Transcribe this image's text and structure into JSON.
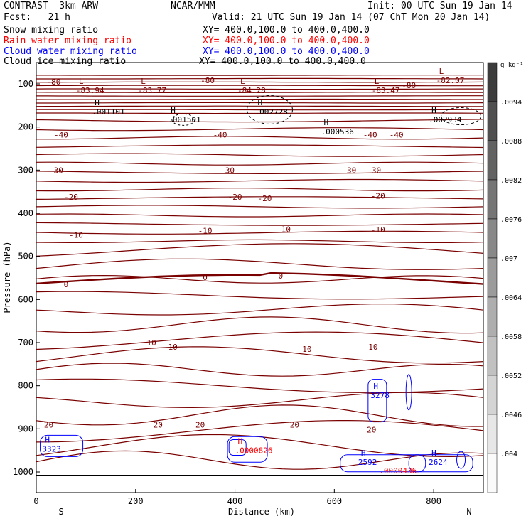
{
  "header": {
    "title_left": "CONTRAST  3km ARW",
    "title_center": "NCAR/MMM",
    "init": "Init: 00 UTC Sun 19 Jan 14",
    "fcst": "Fcst:   21 h",
    "valid": "Valid: 21 UTC Sun 19 Jan 14 (07 ChT Mon 20 Jan 14)",
    "fields": [
      {
        "label": "Snow mixing ratio",
        "xy": "XY= 400.0,100.0 to 400.0,400.0",
        "color": "#000000"
      },
      {
        "label": "Rain water mixing ratio",
        "xy": "XY= 400.0,100.0 to 400.0,400.0",
        "color": "#ff0000"
      },
      {
        "label": "Cloud water mixing ratio",
        "xy": "XY= 400.0,100.0 to 400.0,400.0",
        "color": "#0000ff"
      },
      {
        "label": "Cloud ice mixing ratio",
        "xy": "XY= 400.0,100.0 to 400.0,400.0",
        "color": "#000000"
      }
    ]
  },
  "chart_data": {
    "type": "contour",
    "xlabel": "Distance (km)",
    "ylabel": "Pressure (hPa)",
    "xlim": [
      0,
      900
    ],
    "ylim": [
      1050,
      50
    ],
    "x_ticks": [
      0,
      200,
      400,
      600,
      800
    ],
    "y_ticks": [
      100,
      200,
      300,
      400,
      500,
      600,
      700,
      800,
      900,
      1000
    ],
    "x_end_labels": {
      "left": "S",
      "right": "N"
    },
    "colorbar": {
      "unit": "g kg⁻¹",
      "labels": [
        ".0094",
        ".0088",
        ".0082",
        ".0076",
        ".007",
        ".0064",
        ".0058",
        ".0052",
        ".0046",
        ".004"
      ]
    },
    "temperature_contour_labels": [
      {
        "text": "-80",
        "x": 35,
        "p": 95
      },
      {
        "text": "-80",
        "x": 345,
        "p": 92
      },
      {
        "text": "-80",
        "x": 750,
        "p": 103
      },
      {
        "text": "-40",
        "x": 50,
        "p": 218
      },
      {
        "text": "-40",
        "x": 370,
        "p": 218
      },
      {
        "text": "-40",
        "x": 672,
        "p": 218
      },
      {
        "text": "-40",
        "x": 725,
        "p": 218
      },
      {
        "text": "-30",
        "x": 40,
        "p": 300
      },
      {
        "text": "-30",
        "x": 385,
        "p": 300
      },
      {
        "text": "-30",
        "x": 630,
        "p": 300
      },
      {
        "text": "-30",
        "x": 680,
        "p": 300
      },
      {
        "text": "-20",
        "x": 70,
        "p": 362
      },
      {
        "text": "-20",
        "x": 400,
        "p": 362
      },
      {
        "text": "-20",
        "x": 460,
        "p": 365
      },
      {
        "text": "-20",
        "x": 688,
        "p": 360
      },
      {
        "text": "-10",
        "x": 80,
        "p": 450
      },
      {
        "text": "-10",
        "x": 340,
        "p": 440
      },
      {
        "text": "-10",
        "x": 498,
        "p": 437
      },
      {
        "text": "-10",
        "x": 688,
        "p": 438
      },
      {
        "text": "0",
        "x": 60,
        "p": 565
      },
      {
        "text": "0",
        "x": 340,
        "p": 548
      },
      {
        "text": "0",
        "x": 492,
        "p": 545
      },
      {
        "text": "10",
        "x": 232,
        "p": 700
      },
      {
        "text": "10",
        "x": 275,
        "p": 710
      },
      {
        "text": "10",
        "x": 545,
        "p": 715
      },
      {
        "text": "10",
        "x": 678,
        "p": 710
      },
      {
        "text": "20",
        "x": 25,
        "p": 890
      },
      {
        "text": "20",
        "x": 245,
        "p": 890
      },
      {
        "text": "20",
        "x": 330,
        "p": 890
      },
      {
        "text": "20",
        "x": 520,
        "p": 890
      },
      {
        "text": "20",
        "x": 675,
        "p": 902
      }
    ],
    "extrema": [
      {
        "mark": "L",
        "value": "-83.94",
        "x": 80,
        "p": 113,
        "color": "#800000"
      },
      {
        "mark": "L",
        "value": "-83.77",
        "x": 205,
        "p": 113,
        "color": "#800000"
      },
      {
        "mark": "L",
        "value": "-84.28",
        "x": 405,
        "p": 113,
        "color": "#800000"
      },
      {
        "mark": "L",
        "value": "-83.47",
        "x": 675,
        "p": 113,
        "color": "#800000"
      },
      {
        "mark": "L",
        "value": "-82.07",
        "x": 805,
        "p": 90,
        "color": "#800000"
      },
      {
        "mark": "H",
        "value": ".001101",
        "x": 112,
        "p": 163,
        "color": "#000000"
      },
      {
        "mark": "H",
        "value": ".001501",
        "x": 265,
        "p": 181,
        "color": "#000000"
      },
      {
        "mark": "H",
        "value": ".002728",
        "x": 440,
        "p": 163,
        "color": "#000000"
      },
      {
        "mark": "H",
        "value": ".000536",
        "x": 573,
        "p": 209,
        "color": "#000000"
      },
      {
        "mark": "H",
        "value": ".002934",
        "x": 790,
        "p": 181,
        "color": "#000000"
      },
      {
        "mark": "H",
        "value": "3278",
        "x": 673,
        "p": 820,
        "color": "#0000ff"
      },
      {
        "mark": "H",
        "value": "3323",
        "x": 12,
        "p": 945,
        "color": "#0000ff"
      },
      {
        "mark": "H",
        "value": ".0000826",
        "x": 400,
        "p": 948,
        "color": "#ff0000"
      },
      {
        "mark": "H",
        "value": "2592",
        "x": 648,
        "p": 975,
        "color": "#0000ff"
      },
      {
        "mark": "H",
        "value": "2624",
        "x": 790,
        "p": 975,
        "color": "#0000ff"
      },
      {
        "mark": "",
        "value": ".0000436",
        "x": 690,
        "p": 995,
        "color": "#ff0000"
      }
    ]
  }
}
